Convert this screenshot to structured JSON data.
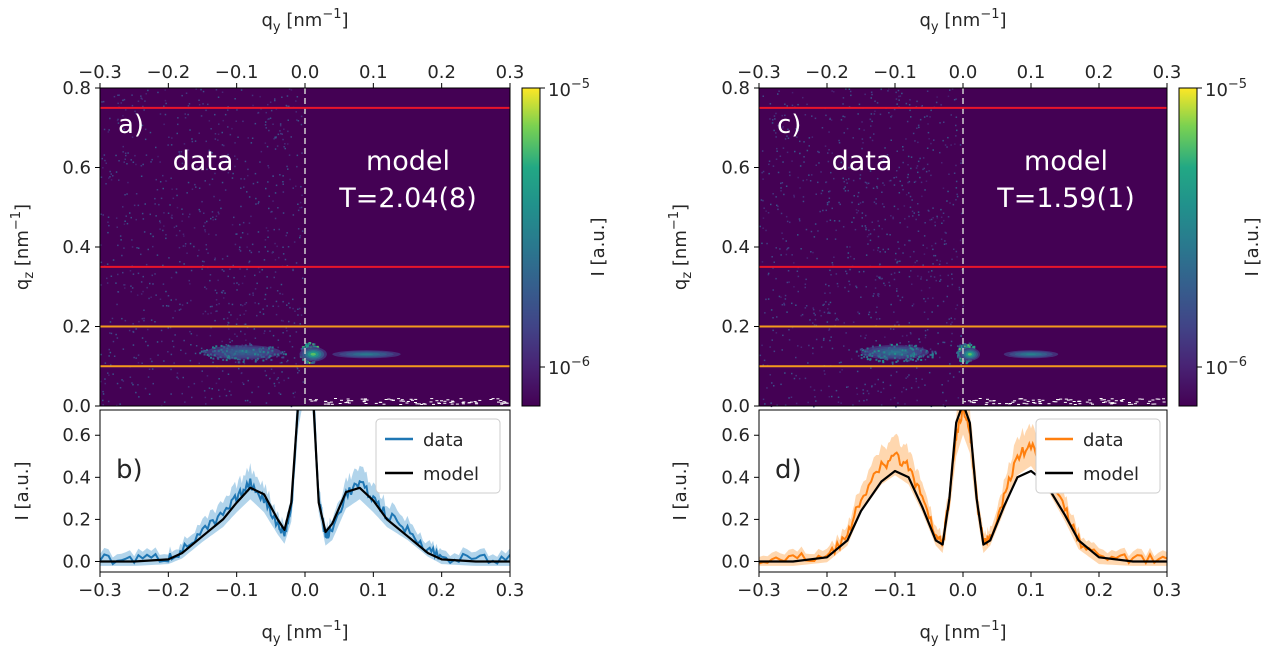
{
  "shared_axes": {
    "qy_label": "q",
    "qy_sub": "y",
    "qy_unit": " [nm",
    "qy_sup": "−1",
    "qy_close": "]",
    "qz_label": "q",
    "qz_sub": "z",
    "qz_unit": " [nm",
    "qz_sup": "−1",
    "qz_close": "]",
    "I_label": "I [a.u.]",
    "colorbar_label": "I [a.u.]",
    "cb_tick_high_base": "10",
    "cb_tick_high_exp": "−5",
    "cb_tick_low_base": "10",
    "cb_tick_low_exp": "−6"
  },
  "chart_data": [
    {
      "type": "heatmap",
      "panel_label": "a)",
      "left_text": "data",
      "right_text_line1": "model",
      "right_text_line2": "T=2.04(8)",
      "xlim": [
        -0.3,
        0.3
      ],
      "ylim": [
        0.0,
        0.8
      ],
      "x_ticks": [
        "−0.3",
        "−0.2",
        "−0.1",
        "0.0",
        "0.1",
        "0.2",
        "0.3"
      ],
      "y_ticks": [
        "0.0",
        "0.2",
        "0.4",
        "0.6",
        "0.8"
      ],
      "divider_qy": 0.0,
      "red_lines_qz": [
        0.35,
        0.75
      ],
      "orange_lines_qz": [
        0.1,
        0.2
      ],
      "colorbar": {
        "scale": "log",
        "range": [
          6e-07,
          1e-05
        ],
        "colormap": "viridis"
      },
      "blobs": [
        {
          "qy": -0.09,
          "qz": 0.135,
          "wy": 0.055,
          "wz": 0.018,
          "level": 0.45,
          "side": "data"
        },
        {
          "qy": 0.006,
          "qz": 0.135,
          "wy": 0.012,
          "wz": 0.02,
          "level": 0.9,
          "side": "data"
        },
        {
          "qy": 0.012,
          "qz": 0.13,
          "wy": 0.02,
          "wz": 0.018,
          "level": 1.0,
          "side": "model"
        },
        {
          "qy": 0.09,
          "qz": 0.13,
          "wy": 0.05,
          "wz": 0.01,
          "level": 0.6,
          "side": "model"
        }
      ]
    },
    {
      "type": "line",
      "panel_label": "b)",
      "xlim": [
        -0.3,
        0.3
      ],
      "ylim": [
        -0.05,
        0.72
      ],
      "x_ticks": [
        "−0.3",
        "−0.2",
        "−0.1",
        "0.0",
        "0.1",
        "0.2",
        "0.3"
      ],
      "y_ticks": [
        "0.0",
        "0.2",
        "0.4",
        "0.6"
      ],
      "legend": "top-right",
      "series": [
        {
          "name": "data",
          "color": "#1f77b4",
          "band_color": "#a8cfe9",
          "x": [
            -0.3,
            -0.25,
            -0.2,
            -0.18,
            -0.15,
            -0.12,
            -0.1,
            -0.08,
            -0.06,
            -0.04,
            -0.03,
            -0.02,
            -0.01,
            0.0,
            0.01,
            0.02,
            0.03,
            0.04,
            0.06,
            0.08,
            0.1,
            0.12,
            0.15,
            0.18,
            0.2,
            0.25,
            0.3
          ],
          "y": [
            0.01,
            0.01,
            0.02,
            0.05,
            0.14,
            0.22,
            0.3,
            0.37,
            0.3,
            0.18,
            0.13,
            0.25,
            0.75,
            0.95,
            0.9,
            0.3,
            0.12,
            0.15,
            0.32,
            0.37,
            0.3,
            0.22,
            0.15,
            0.06,
            0.02,
            0.01,
            0.01
          ]
        },
        {
          "name": "model",
          "color": "#000000",
          "x": [
            -0.3,
            -0.25,
            -0.2,
            -0.18,
            -0.15,
            -0.12,
            -0.1,
            -0.08,
            -0.06,
            -0.04,
            -0.03,
            -0.02,
            -0.01,
            0.0,
            0.01,
            0.02,
            0.03,
            0.04,
            0.06,
            0.08,
            0.1,
            0.12,
            0.15,
            0.18,
            0.2,
            0.25,
            0.3
          ],
          "y": [
            0.0,
            0.0,
            0.01,
            0.04,
            0.12,
            0.2,
            0.28,
            0.35,
            0.32,
            0.2,
            0.15,
            0.28,
            0.75,
            0.95,
            0.9,
            0.28,
            0.14,
            0.18,
            0.33,
            0.35,
            0.29,
            0.2,
            0.12,
            0.04,
            0.01,
            0.0,
            0.0
          ]
        }
      ]
    },
    {
      "type": "heatmap",
      "panel_label": "c)",
      "left_text": "data",
      "right_text_line1": "model",
      "right_text_line2": "T=1.59(1)",
      "xlim": [
        -0.3,
        0.3
      ],
      "ylim": [
        0.0,
        0.8
      ],
      "x_ticks": [
        "−0.3",
        "−0.2",
        "−0.1",
        "0.0",
        "0.1",
        "0.2",
        "0.3"
      ],
      "y_ticks": [
        "0.0",
        "0.2",
        "0.4",
        "0.6",
        "0.8"
      ],
      "divider_qy": 0.0,
      "red_lines_qz": [
        0.35,
        0.75
      ],
      "orange_lines_qz": [
        0.1,
        0.2
      ],
      "colorbar": {
        "scale": "log",
        "range": [
          6e-07,
          1e-05
        ],
        "colormap": "viridis"
      },
      "blobs": [
        {
          "qy": -0.1,
          "qz": 0.135,
          "wy": 0.05,
          "wz": 0.018,
          "level": 0.55,
          "side": "data"
        },
        {
          "qy": 0.004,
          "qz": 0.135,
          "wy": 0.012,
          "wz": 0.02,
          "level": 0.85,
          "side": "data"
        },
        {
          "qy": 0.01,
          "qz": 0.13,
          "wy": 0.015,
          "wz": 0.016,
          "level": 1.0,
          "side": "model"
        },
        {
          "qy": 0.1,
          "qz": 0.13,
          "wy": 0.04,
          "wz": 0.01,
          "level": 0.65,
          "side": "model"
        }
      ]
    },
    {
      "type": "line",
      "panel_label": "d)",
      "xlim": [
        -0.3,
        0.3
      ],
      "ylim": [
        -0.05,
        0.72
      ],
      "x_ticks": [
        "−0.3",
        "−0.2",
        "−0.1",
        "0.0",
        "0.1",
        "0.2",
        "0.3"
      ],
      "y_ticks": [
        "0.0",
        "0.2",
        "0.4",
        "0.6"
      ],
      "legend": "top-right",
      "series": [
        {
          "name": "data",
          "color": "#ff7f0e",
          "band_color": "#ffd3a6",
          "x": [
            -0.3,
            -0.25,
            -0.2,
            -0.17,
            -0.15,
            -0.12,
            -0.1,
            -0.08,
            -0.06,
            -0.04,
            -0.03,
            -0.02,
            -0.01,
            0.0,
            0.01,
            0.02,
            0.03,
            0.04,
            0.06,
            0.08,
            0.1,
            0.12,
            0.15,
            0.17,
            0.2,
            0.25,
            0.3
          ],
          "y": [
            0.01,
            0.01,
            0.03,
            0.12,
            0.3,
            0.45,
            0.5,
            0.45,
            0.3,
            0.12,
            0.08,
            0.3,
            0.6,
            0.72,
            0.62,
            0.3,
            0.08,
            0.12,
            0.3,
            0.5,
            0.55,
            0.45,
            0.25,
            0.1,
            0.02,
            0.01,
            0.01
          ]
        },
        {
          "name": "model",
          "color": "#000000",
          "x": [
            -0.3,
            -0.25,
            -0.2,
            -0.17,
            -0.15,
            -0.12,
            -0.1,
            -0.08,
            -0.06,
            -0.04,
            -0.03,
            -0.02,
            -0.01,
            0.0,
            0.01,
            0.02,
            0.03,
            0.04,
            0.06,
            0.08,
            0.1,
            0.12,
            0.15,
            0.17,
            0.2,
            0.25,
            0.3
          ],
          "y": [
            0.0,
            0.0,
            0.02,
            0.1,
            0.24,
            0.38,
            0.43,
            0.4,
            0.26,
            0.1,
            0.08,
            0.3,
            0.66,
            0.75,
            0.66,
            0.3,
            0.08,
            0.1,
            0.26,
            0.4,
            0.43,
            0.38,
            0.22,
            0.1,
            0.02,
            0.0,
            0.0
          ]
        }
      ]
    }
  ]
}
